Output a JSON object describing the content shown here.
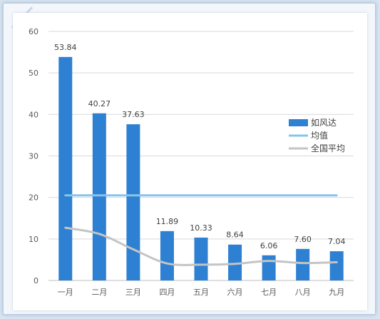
{
  "chart_data": {
    "type": "bar",
    "categories": [
      "一月",
      "二月",
      "三月",
      "四月",
      "五月",
      "六月",
      "七月",
      "八月",
      "九月"
    ],
    "series": [
      {
        "name": "如风达",
        "type": "bar",
        "color": "#2e80d2",
        "values": [
          53.84,
          40.27,
          37.63,
          11.89,
          10.33,
          8.64,
          6.06,
          7.6,
          7.04
        ],
        "labels": [
          "53.84",
          "40.27",
          "37.63",
          "11.89",
          "10.33",
          "8.64",
          "6.06",
          "7.60",
          "7.04"
        ]
      },
      {
        "name": "均值",
        "type": "line",
        "color": "#86c4ea",
        "values": [
          20.5,
          20.5,
          20.5,
          20.5,
          20.5,
          20.5,
          20.5,
          20.5,
          20.5
        ]
      },
      {
        "name": "全国平均",
        "type": "line",
        "color": "#c4c4c4",
        "values": [
          12.7,
          11.2,
          7.5,
          4.1,
          3.8,
          4.0,
          4.7,
          4.2,
          4.4
        ]
      }
    ],
    "yticks": [
      "0",
      "10",
      "20",
      "30",
      "40",
      "50",
      "60"
    ],
    "ylim": [
      0,
      60
    ],
    "grid": true,
    "legend": "right"
  }
}
